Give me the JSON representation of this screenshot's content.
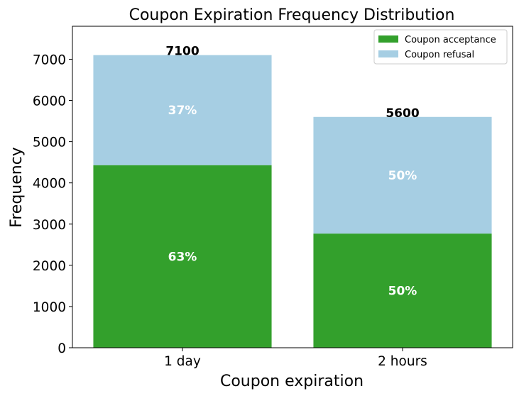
{
  "chart_data": {
    "type": "bar",
    "stacked": true,
    "title": "Coupon Expiration Frequency Distribution",
    "xlabel": "Coupon expiration",
    "ylabel": "Frequency",
    "categories": [
      "1 day",
      "2 hours"
    ],
    "ylim": [
      0,
      7800
    ],
    "yticks": [
      0,
      1000,
      2000,
      3000,
      4000,
      5000,
      6000,
      7000
    ],
    "series": [
      {
        "name": "Coupon acceptance",
        "color": "#33a02c",
        "values": [
          4430,
          2770
        ],
        "percent_labels": [
          "63%",
          "50%"
        ]
      },
      {
        "name": "Coupon refusal",
        "color": "#a6cee3",
        "values": [
          2670,
          2830
        ],
        "percent_labels": [
          "37%",
          "50%"
        ]
      }
    ],
    "totals": [
      "7100",
      "5600"
    ],
    "legend_position": "top-right",
    "grid": false
  }
}
